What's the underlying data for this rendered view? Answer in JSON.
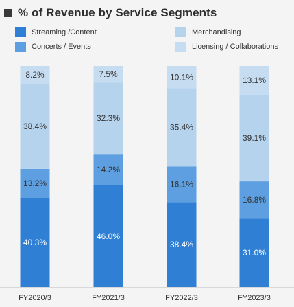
{
  "title": "% of Revenue by Service Segments",
  "colors": {
    "streaming": "#2f7fd4",
    "concerts": "#5d9fe0",
    "merchandising": "#b6d3ee",
    "licensing": "#c6dcf1",
    "background": "#f4f4f4",
    "label_dark": "#333333",
    "label_light": "#ffffff"
  },
  "legend": [
    {
      "name": "Streaming /Content",
      "color_key": "streaming"
    },
    {
      "name": "Merchandising",
      "color_key": "merchandising"
    },
    {
      "name": "Concerts  / Events",
      "color_key": "concerts"
    },
    {
      "name": "Licensing / Collaborations",
      "color_key": "licensing"
    }
  ],
  "chart_data": {
    "type": "bar",
    "stacked": true,
    "title": "% of Revenue by Service Segments",
    "categories": [
      "FY2020/3",
      "FY2021/3",
      "FY2022/3",
      "FY2023/3"
    ],
    "series": [
      {
        "name": "Streaming /Content",
        "values": [
          40.3,
          46.0,
          38.4,
          31.0
        ]
      },
      {
        "name": "Concerts  / Events",
        "values": [
          13.2,
          14.2,
          16.1,
          16.8
        ]
      },
      {
        "name": "Merchandising",
        "values": [
          38.4,
          32.3,
          35.4,
          39.1
        ]
      },
      {
        "name": "Licensing / Collaborations",
        "values": [
          8.2,
          7.5,
          10.1,
          13.1
        ]
      }
    ],
    "data_labels": [
      [
        "40.3%",
        "46.0%",
        "38.4%",
        "31.0%"
      ],
      [
        "13.2%",
        "14.2%",
        "16.1%",
        "16.8%"
      ],
      [
        "38.4%",
        "32.3%",
        "35.4%",
        "39.1%"
      ],
      [
        "8.2%",
        "7.5%",
        "10.1%",
        "13.1%"
      ]
    ],
    "ylim": [
      0,
      100
    ],
    "grid": false,
    "legend_position": "top"
  }
}
